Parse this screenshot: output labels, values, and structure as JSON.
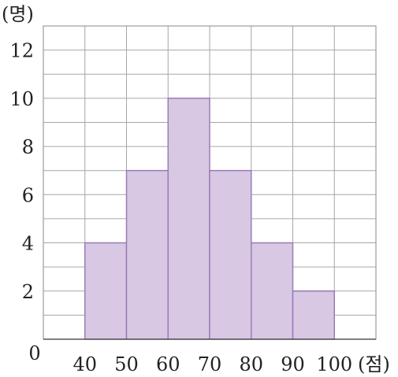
{
  "chart_data": {
    "type": "bar",
    "x": [
      40,
      50,
      60,
      70,
      80,
      90,
      100
    ],
    "categories": [
      "40-50",
      "50-60",
      "60-70",
      "70-80",
      "80-90",
      "90-100"
    ],
    "values": [
      4,
      7,
      10,
      7,
      4,
      2
    ],
    "xlabel": "(점)",
    "ylabel": "(명)",
    "origin_label": "0",
    "xlim": [
      30,
      110
    ],
    "ylim": [
      0,
      13
    ],
    "x_ticks": [
      40,
      50,
      60,
      70,
      80,
      90,
      100
    ],
    "y_ticks": [
      2,
      4,
      6,
      8,
      10,
      12
    ],
    "grid": true,
    "colors": {
      "bar_fill": "#d8c8e3",
      "bar_stroke": "#9a7bb8",
      "grid": "#a6a6a6"
    }
  }
}
